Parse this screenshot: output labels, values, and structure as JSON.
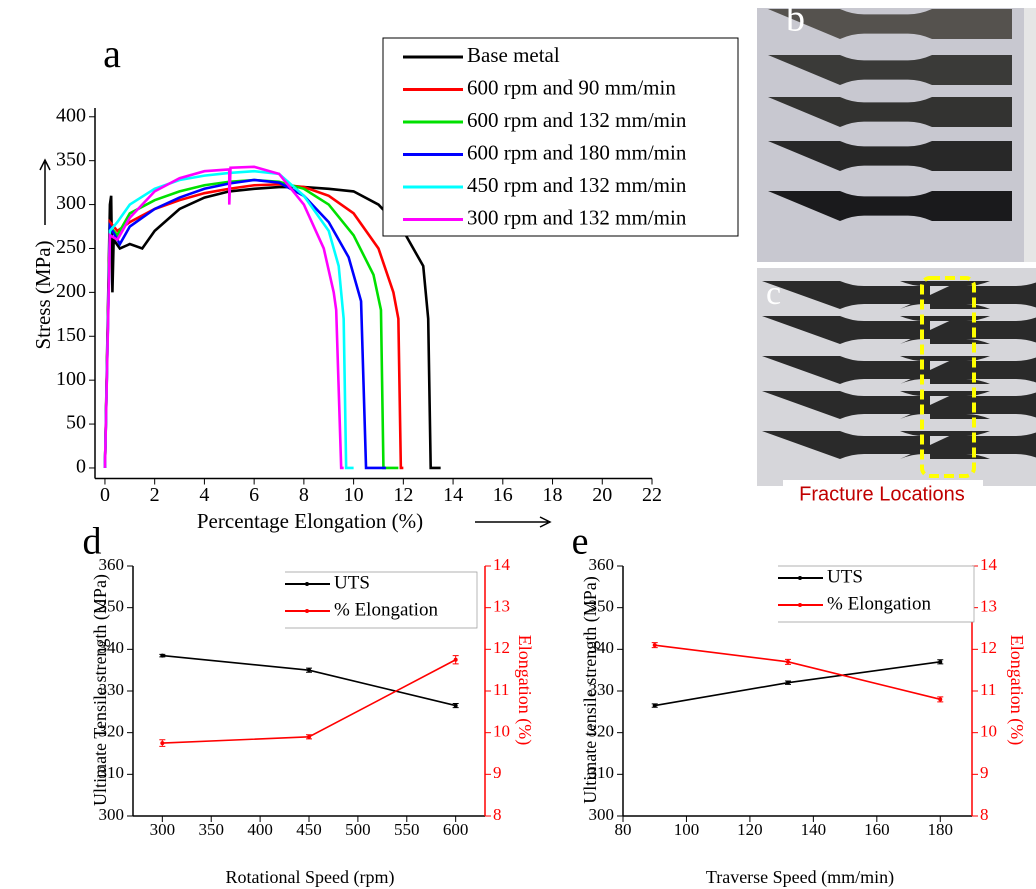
{
  "chart_data": [
    {
      "type": "line",
      "panel_label": "a",
      "x_label": "Percentage Elongation (%)",
      "y_label": "Stress (MPa)",
      "xlim": [
        -0.4,
        22
      ],
      "ylim": [
        -12,
        410
      ],
      "xticks": [
        0,
        2,
        4,
        6,
        8,
        10,
        12,
        14,
        16,
        18,
        20,
        22
      ],
      "yticks": [
        0,
        50,
        100,
        150,
        200,
        250,
        300,
        350,
        400
      ],
      "legend": "upper right",
      "series": [
        {
          "name": "Base metal",
          "color": "#000000",
          "x": [
            0,
            0.2,
            0.25,
            0.3,
            0.35,
            0.6,
            1,
            1.5,
            2,
            3,
            4,
            5,
            6,
            7,
            8,
            9,
            10,
            11,
            12,
            12.8,
            13,
            13.1,
            13.5
          ],
          "values": [
            0,
            300,
            310,
            200,
            260,
            250,
            255,
            250,
            270,
            295,
            308,
            315,
            318,
            320,
            320,
            318,
            315,
            300,
            270,
            230,
            170,
            0,
            0
          ]
        },
        {
          "name": "600 rpm and 90 mm/min",
          "color": "#ff0000",
          "x": [
            0,
            0.2,
            0.5,
            1,
            2,
            3,
            4,
            5,
            6,
            7,
            8,
            9,
            10,
            11,
            11.6,
            11.8,
            11.9,
            12
          ],
          "values": [
            0,
            280,
            270,
            280,
            295,
            305,
            313,
            318,
            322,
            323,
            320,
            310,
            290,
            250,
            200,
            170,
            0,
            0
          ]
        },
        {
          "name": "600 rpm and 132 mm/min",
          "color": "#00e000",
          "x": [
            0,
            0.2,
            0.5,
            1,
            2,
            3,
            4,
            5,
            6,
            7,
            8,
            9,
            10,
            10.8,
            11.1,
            11.2,
            11.8
          ],
          "values": [
            0,
            275,
            265,
            290,
            305,
            315,
            322,
            326,
            328,
            326,
            318,
            300,
            265,
            220,
            180,
            0,
            0
          ]
        },
        {
          "name": "600 rpm and 180 mm/min",
          "color": "#0000ff",
          "x": [
            0,
            0.2,
            0.6,
            1,
            2,
            3,
            4,
            5,
            6,
            7,
            8,
            9,
            9.8,
            10.3,
            10.5,
            11.3
          ],
          "values": [
            0,
            275,
            255,
            275,
            295,
            308,
            318,
            324,
            328,
            325,
            310,
            280,
            240,
            190,
            0,
            0
          ]
        },
        {
          "name": "450 rpm and 132 mm/min",
          "color": "#00ffff",
          "x": [
            0,
            0.2,
            0.5,
            1,
            2,
            3,
            4,
            5,
            6,
            7,
            8,
            9,
            9.4,
            9.6,
            9.7,
            10
          ],
          "values": [
            0,
            270,
            280,
            300,
            318,
            328,
            333,
            336,
            338,
            335,
            310,
            270,
            230,
            170,
            0,
            0
          ]
        },
        {
          "name": "300 rpm and 132 mm/min",
          "color": "#ff00ff",
          "x": [
            0,
            0.2,
            0.5,
            1,
            2,
            3,
            4,
            5,
            5,
            5.05,
            6,
            7,
            8,
            8.8,
            9.2,
            9.3,
            9.5,
            9.6
          ],
          "values": [
            0,
            265,
            260,
            285,
            315,
            330,
            338,
            340,
            300,
            342,
            343,
            335,
            300,
            250,
            200,
            180,
            0,
            0
          ]
        }
      ]
    },
    {
      "type": "line",
      "panel_label": "d",
      "x_label": "Rotational Speed (rpm)",
      "y_label": "Ultimate Tensile strength (MPa)",
      "y2_label": "Elongation (%)",
      "x": [
        300,
        450,
        600
      ],
      "xlim": [
        270,
        630
      ],
      "xticks": [
        300,
        350,
        400,
        450,
        500,
        550,
        600
      ],
      "ylim": [
        300,
        360
      ],
      "yticks": [
        300,
        310,
        320,
        330,
        340,
        350,
        360
      ],
      "y2lim": [
        8,
        14
      ],
      "y2ticks": [
        8,
        9,
        10,
        11,
        12,
        13,
        14
      ],
      "y2_color": "#ff0000",
      "series": [
        {
          "name": "UTS",
          "color": "#000000",
          "values": [
            338.5,
            335,
            326.5
          ],
          "errors": [
            0.3,
            0.5,
            0.5
          ]
        },
        {
          "name": "% Elongation",
          "color": "#ff0000",
          "axis": "y2",
          "values": [
            9.75,
            9.9,
            11.75
          ],
          "errors": [
            0.08,
            0.05,
            0.1
          ]
        }
      ]
    },
    {
      "type": "line",
      "panel_label": "e",
      "x_label": "Traverse Speed (mm/min)",
      "y_label": "Ultimate tensile strength (MPa)",
      "y2_label": "Elongation (%)",
      "x": [
        90,
        132,
        180
      ],
      "xlim": [
        80,
        190
      ],
      "xticks": [
        80,
        100,
        120,
        140,
        160,
        180
      ],
      "ylim": [
        300,
        360
      ],
      "yticks": [
        300,
        310,
        320,
        330,
        340,
        350,
        360
      ],
      "y2lim": [
        8,
        14
      ],
      "y2ticks": [
        8,
        9,
        10,
        11,
        12,
        13,
        14
      ],
      "y2_color": "#ff0000",
      "series": [
        {
          "name": "UTS",
          "color": "#000000",
          "values": [
            326.5,
            332,
            337
          ],
          "errors": [
            0.4,
            0.4,
            0.5
          ]
        },
        {
          "name": "% Elongation",
          "color": "#ff0000",
          "axis": "y2",
          "values": [
            12.1,
            11.7,
            10.8
          ],
          "errors": [
            0.06,
            0.06,
            0.06
          ]
        }
      ]
    }
  ],
  "photos": {
    "b_label": "b",
    "c_label": "c",
    "c_annotation": "Fracture Locations"
  }
}
